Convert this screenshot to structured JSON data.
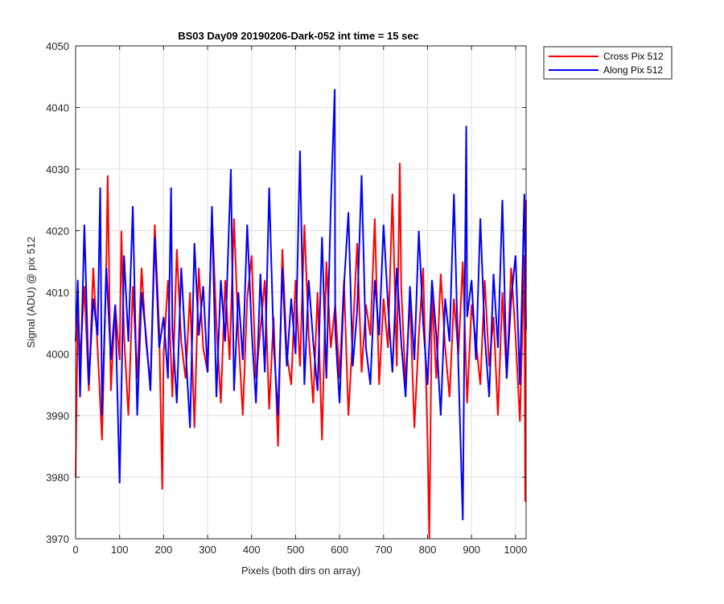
{
  "figure": {
    "title": "BS03 Day09 20190206-Dark-052 int time = 15 sec",
    "xlabel": "Pixels (both dirs on array)",
    "ylabel": "Signal (ADU) @ pix 512"
  },
  "legend": {
    "placement": "outside-top-right",
    "items": [
      "Cross Pix 512",
      "Along Pix 512"
    ]
  },
  "chart_data": {
    "type": "line",
    "title": "BS03 Day09 20190206-Dark-052 int time = 15 sec",
    "xlabel": "Pixels (both dirs on array)",
    "ylabel": "Signal (ADU) @ pix 512",
    "xlim": [
      0,
      1024
    ],
    "ylim": [
      3970,
      4050
    ],
    "xticks": [
      0,
      100,
      200,
      300,
      400,
      500,
      600,
      700,
      800,
      900,
      1000
    ],
    "yticks": [
      3970,
      3980,
      3990,
      4000,
      4010,
      4020,
      4030,
      4040,
      4050
    ],
    "grid": true,
    "legend": "outside-top-right",
    "series": [
      {
        "name": "Cross Pix 512",
        "color": "#ff0000",
        "x": [
          0,
          5,
          10,
          20,
          30,
          40,
          50,
          60,
          70,
          73,
          80,
          90,
          100,
          104,
          110,
          120,
          130,
          140,
          150,
          160,
          170,
          180,
          190,
          197,
          200,
          210,
          220,
          230,
          240,
          250,
          260,
          270,
          280,
          290,
          300,
          310,
          320,
          330,
          340,
          350,
          360,
          370,
          380,
          390,
          400,
          410,
          420,
          430,
          440,
          450,
          460,
          470,
          480,
          490,
          500,
          510,
          520,
          530,
          540,
          550,
          560,
          570,
          580,
          590,
          600,
          610,
          620,
          630,
          640,
          650,
          660,
          670,
          680,
          690,
          700,
          710,
          720,
          730,
          737,
          740,
          750,
          760,
          770,
          780,
          790,
          800,
          804,
          810,
          820,
          830,
          840,
          850,
          860,
          870,
          880,
          890,
          900,
          910,
          920,
          930,
          940,
          950,
          960,
          970,
          980,
          990,
          1000,
          1010,
          1020,
          1022,
          1024
        ],
        "y": [
          3980,
          4008,
          3999,
          4011,
          3994,
          4014,
          4001,
          3986,
          4016,
          4029,
          3994,
          4008,
          3999,
          4020,
          4003,
          3990,
          4011,
          3996,
          4014,
          4002,
          3995,
          4021,
          4004,
          3978,
          4000,
          4012,
          3993,
          4017,
          4002,
          3996,
          4010,
          3988,
          4014,
          4001,
          3997,
          4023,
          4005,
          3992,
          4012,
          3999,
          4022,
          4003,
          3990,
          4009,
          4016,
          3996,
          4004,
          4012,
          3991,
          4006,
          3985,
          4017,
          4000,
          3995,
          4012,
          3998,
          4021,
          4003,
          3992,
          4010,
          3986,
          4015,
          4001,
          4008,
          3996,
          4012,
          3990,
          4003,
          4018,
          3997,
          4008,
          4003,
          4022,
          3995,
          4009,
          4001,
          4026,
          3998,
          4031,
          4011,
          3995,
          4009,
          3988,
          4003,
          4014,
          3986,
          3970,
          4010,
          3996,
          4013,
          4001,
          3993,
          4009,
          4000,
          4015,
          3992,
          4008,
          4002,
          3995,
          4012,
          3998,
          4006,
          3990,
          4010,
          3996,
          4014,
          4003,
          3989,
          4016,
          3976,
          4025
        ]
      },
      {
        "name": "Along Pix 512",
        "color": "#0000ff",
        "x": [
          0,
          5,
          10,
          20,
          30,
          40,
          50,
          56,
          60,
          70,
          80,
          90,
          100,
          110,
          120,
          130,
          140,
          150,
          160,
          170,
          180,
          190,
          200,
          210,
          217,
          220,
          230,
          240,
          250,
          260,
          270,
          280,
          290,
          300,
          310,
          320,
          330,
          340,
          353,
          360,
          370,
          380,
          390,
          400,
          410,
          420,
          430,
          440,
          450,
          460,
          470,
          480,
          490,
          500,
          510,
          520,
          530,
          540,
          550,
          560,
          570,
          580,
          589,
          590,
          600,
          610,
          620,
          630,
          640,
          650,
          660,
          670,
          680,
          690,
          700,
          710,
          720,
          730,
          740,
          750,
          760,
          770,
          780,
          790,
          800,
          810,
          820,
          830,
          840,
          850,
          860,
          870,
          880,
          888,
          890,
          900,
          910,
          920,
          930,
          940,
          950,
          960,
          970,
          980,
          990,
          1000,
          1010,
          1020,
          1024
        ],
        "y": [
          4002,
          4012,
          3993,
          4021,
          3995,
          4009,
          4003,
          4027,
          3990,
          4014,
          3999,
          4008,
          3979,
          4016,
          4002,
          4024,
          3990,
          4010,
          4003,
          3994,
          4019,
          4001,
          4006,
          3996,
          4027,
          4004,
          3992,
          4014,
          4001,
          3988,
          4018,
          4003,
          4011,
          3997,
          4024,
          3993,
          4012,
          4002,
          4030,
          3994,
          4010,
          3999,
          4021,
          4004,
          3992,
          4013,
          3997,
          4027,
          4002,
          3990,
          4014,
          3998,
          4009,
          4000,
          4033,
          3995,
          4012,
          4002,
          3994,
          4019,
          3996,
          4024,
          4043,
          4004,
          3992,
          4011,
          4023,
          3998,
          4007,
          4029,
          4001,
          3995,
          4012,
          4003,
          4021,
          4008,
          3997,
          4014,
          4002,
          3993,
          4011,
          3999,
          4020,
          4005,
          3995,
          4012,
          4003,
          3990,
          4009,
          4002,
          4026,
          3998,
          3973,
          4037,
          4006,
          4012,
          3999,
          4022,
          4003,
          3993,
          4013,
          4001,
          4025,
          3996,
          4009,
          4016,
          3995,
          4026,
          4004
        ]
      }
    ]
  }
}
